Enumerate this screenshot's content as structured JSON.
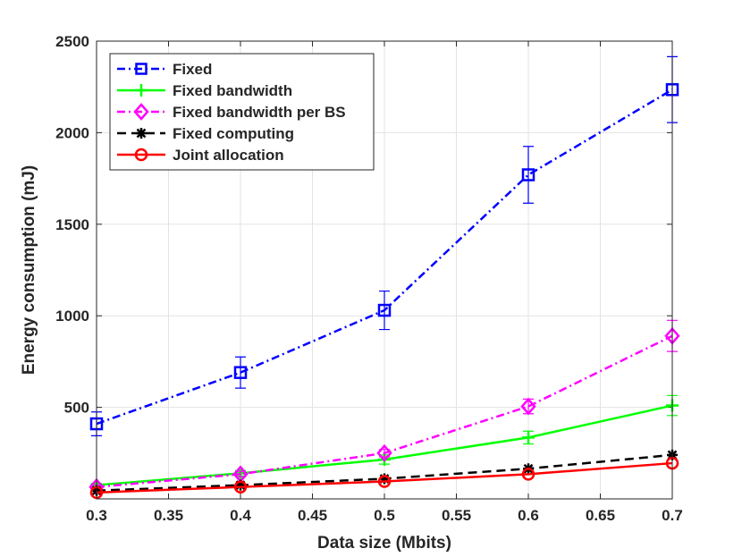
{
  "chart_data": {
    "type": "line",
    "title": "",
    "xlabel": "Data size (Mbits)",
    "ylabel": "Energy consumption (mJ)",
    "xlim": [
      0.3,
      0.7
    ],
    "ylim": [
      0,
      2500
    ],
    "grid": true,
    "legend_position": "top-left",
    "x": [
      0.3,
      0.4,
      0.5,
      0.6,
      0.7
    ],
    "x_ticks": [
      "0.3",
      "0.35",
      "0.4",
      "0.45",
      "0.5",
      "0.55",
      "0.6",
      "0.65",
      "0.7"
    ],
    "y_ticks": [
      "500",
      "1000",
      "1500",
      "2000",
      "2500"
    ],
    "series": [
      {
        "name": "Fixed",
        "color": "#0000ff",
        "marker": "square",
        "dash": "dashdot",
        "values": [
          410,
          690,
          1030,
          1770,
          2235
        ],
        "errors": [
          65,
          85,
          105,
          155,
          180
        ]
      },
      {
        "name": "Fixed bandwidth",
        "color": "#00ff00",
        "marker": "plus",
        "dash": "solid",
        "values": [
          75,
          140,
          215,
          335,
          510
        ],
        "errors": [
          10,
          15,
          25,
          35,
          55
        ]
      },
      {
        "name": "Fixed bandwidth per BS",
        "color": "#ff00ff",
        "marker": "diamond",
        "dash": "dashdot",
        "values": [
          65,
          135,
          250,
          505,
          890
        ],
        "errors": [
          10,
          15,
          20,
          40,
          85
        ]
      },
      {
        "name": "Fixed computing",
        "color": "#000000",
        "marker": "asterisk",
        "dash": "dashed",
        "values": [
          45,
          75,
          110,
          165,
          240
        ],
        "errors": [
          0,
          0,
          0,
          0,
          0
        ]
      },
      {
        "name": "Joint allocation",
        "color": "#ff0000",
        "marker": "circle",
        "dash": "solid",
        "values": [
          35,
          65,
          95,
          135,
          195
        ],
        "errors": [
          0,
          0,
          0,
          0,
          0
        ]
      }
    ]
  }
}
